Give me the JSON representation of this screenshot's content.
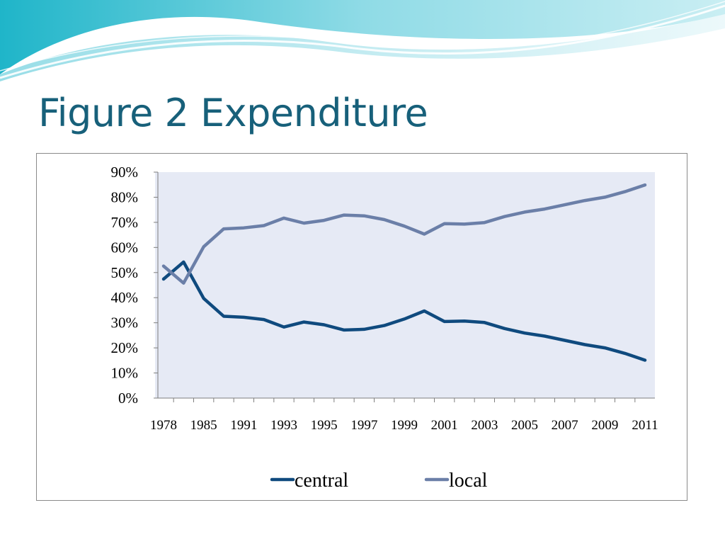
{
  "slide": {
    "title": "Figure 2 Expenditure"
  },
  "chart_data": {
    "type": "line",
    "title": "",
    "xlabel": "",
    "ylabel": "",
    "ylim": [
      0,
      90
    ],
    "y_ticks": [
      "0%",
      "10%",
      "20%",
      "30%",
      "40%",
      "50%",
      "60%",
      "70%",
      "80%",
      "90%"
    ],
    "x_tick_labels": [
      "1978",
      "1985",
      "1991",
      "1993",
      "1995",
      "1997",
      "1999",
      "2001",
      "2003",
      "2005",
      "2007",
      "2009",
      "2011"
    ],
    "x": [
      "1978",
      "1980",
      "1985",
      "1990",
      "1991",
      "1992",
      "1993",
      "1994",
      "1995",
      "1996",
      "1997",
      "1998",
      "1999",
      "2000",
      "2001",
      "2002",
      "2003",
      "2004",
      "2005",
      "2006",
      "2007",
      "2008",
      "2009",
      "2010",
      "2011"
    ],
    "series": [
      {
        "name": "central",
        "color": "#0f4a7e",
        "values": [
          47.4,
          54.2,
          39.7,
          32.6,
          32.2,
          31.3,
          28.3,
          30.3,
          29.2,
          27.1,
          27.4,
          28.9,
          31.5,
          34.7,
          30.5,
          30.7,
          30.1,
          27.7,
          25.9,
          24.7,
          23.0,
          21.3,
          20.0,
          17.8,
          15.1
        ]
      },
      {
        "name": "local",
        "color": "#6b7fa8",
        "values": [
          52.6,
          45.8,
          60.3,
          67.4,
          67.8,
          68.7,
          71.7,
          69.7,
          70.8,
          72.9,
          72.6,
          71.1,
          68.5,
          65.3,
          69.5,
          69.3,
          69.9,
          72.3,
          74.1,
          75.3,
          77.0,
          78.7,
          80.0,
          82.2,
          84.9
        ]
      }
    ],
    "grid": false,
    "legend": "bottom"
  }
}
